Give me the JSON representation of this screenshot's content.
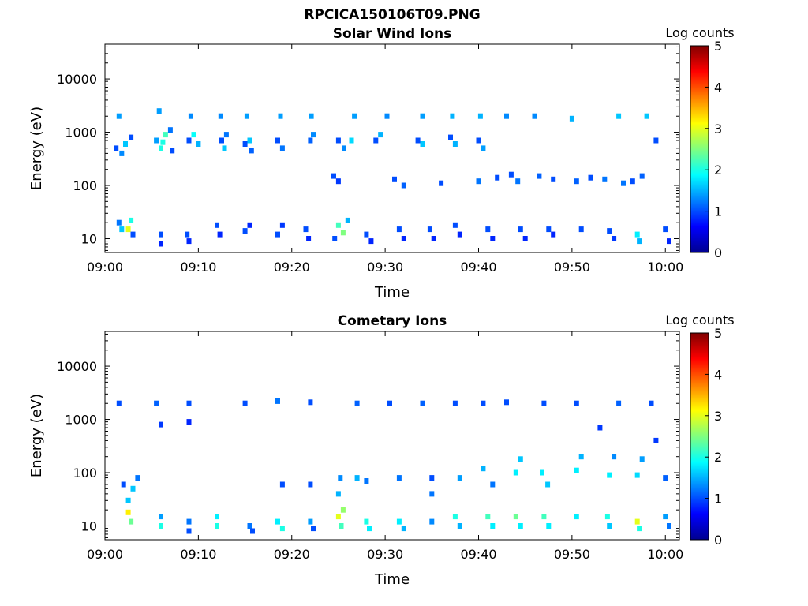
{
  "figure": {
    "title": "RPCICA150106T09.PNG"
  },
  "colorbar": {
    "label": "Log counts",
    "ticks": [
      "0",
      "1",
      "2",
      "3",
      "4",
      "5"
    ],
    "min": 0,
    "max": 5
  },
  "chart_data": [
    {
      "type": "heatmap",
      "title": "Solar Wind Ions",
      "xlabel": "Time",
      "ylabel": "Energy (eV)",
      "x_ticks": [
        "09:00",
        "09:10",
        "09:20",
        "09:30",
        "09:40",
        "09:50",
        "10:00"
      ],
      "x_range_minutes": [
        0,
        61.5
      ],
      "y_scale": "log",
      "y_ticks": [
        10,
        100,
        1000,
        10000
      ],
      "y_tick_labels": [
        "10",
        "100",
        "1000",
        "10000"
      ],
      "y_range": [
        5.5,
        45000
      ],
      "color_scale": "jet (Log counts 0-5)",
      "cells": [
        {
          "t": 1.5,
          "e": 20,
          "v": 1.2
        },
        {
          "t": 1.8,
          "e": 15,
          "v": 1.6
        },
        {
          "t": 2.5,
          "e": 15,
          "v": 3.0
        },
        {
          "t": 3,
          "e": 12,
          "v": 1.0
        },
        {
          "t": 2.8,
          "e": 22,
          "v": 2.0
        },
        {
          "t": 6,
          "e": 12,
          "v": 1.0
        },
        {
          "t": 6,
          "e": 8,
          "v": 0.8
        },
        {
          "t": 8.8,
          "e": 12,
          "v": 1.0
        },
        {
          "t": 9,
          "e": 9,
          "v": 0.8
        },
        {
          "t": 12,
          "e": 18,
          "v": 1.0
        },
        {
          "t": 12.3,
          "e": 12,
          "v": 0.8
        },
        {
          "t": 15,
          "e": 14,
          "v": 1.0
        },
        {
          "t": 15.5,
          "e": 18,
          "v": 0.8
        },
        {
          "t": 18.5,
          "e": 12,
          "v": 1.0
        },
        {
          "t": 19,
          "e": 18,
          "v": 0.9
        },
        {
          "t": 21.5,
          "e": 15,
          "v": 1.0
        },
        {
          "t": 21.8,
          "e": 10,
          "v": 0.8
        },
        {
          "t": 25,
          "e": 18,
          "v": 2.2
        },
        {
          "t": 25.5,
          "e": 13,
          "v": 2.5
        },
        {
          "t": 26,
          "e": 22,
          "v": 1.5
        },
        {
          "t": 24.6,
          "e": 10,
          "v": 1.0
        },
        {
          "t": 28,
          "e": 12,
          "v": 1.0
        },
        {
          "t": 28.5,
          "e": 9,
          "v": 0.8
        },
        {
          "t": 31.5,
          "e": 15,
          "v": 1.0
        },
        {
          "t": 32,
          "e": 10,
          "v": 0.8
        },
        {
          "t": 34.8,
          "e": 15,
          "v": 1.0
        },
        {
          "t": 35.2,
          "e": 10,
          "v": 0.8
        },
        {
          "t": 37.5,
          "e": 18,
          "v": 1.0
        },
        {
          "t": 38,
          "e": 12,
          "v": 0.8
        },
        {
          "t": 41,
          "e": 15,
          "v": 1.0
        },
        {
          "t": 41.5,
          "e": 10,
          "v": 0.8
        },
        {
          "t": 44.5,
          "e": 15,
          "v": 1.0
        },
        {
          "t": 45,
          "e": 10,
          "v": 0.8
        },
        {
          "t": 47.5,
          "e": 15,
          "v": 1.0
        },
        {
          "t": 48,
          "e": 12,
          "v": 0.8
        },
        {
          "t": 51,
          "e": 15,
          "v": 1.0
        },
        {
          "t": 54,
          "e": 14,
          "v": 1.0
        },
        {
          "t": 54.5,
          "e": 10,
          "v": 0.9
        },
        {
          "t": 57,
          "e": 12,
          "v": 1.8
        },
        {
          "t": 57.2,
          "e": 9,
          "v": 1.5
        },
        {
          "t": 60,
          "e": 15,
          "v": 1.0
        },
        {
          "t": 60.4,
          "e": 9,
          "v": 0.8
        },
        {
          "t": 1.2,
          "e": 500,
          "v": 1.0
        },
        {
          "t": 1.8,
          "e": 400,
          "v": 1.3
        },
        {
          "t": 2.2,
          "e": 600,
          "v": 1.6
        },
        {
          "t": 2.8,
          "e": 800,
          "v": 1.0
        },
        {
          "t": 1.5,
          "e": 2000,
          "v": 1.4
        },
        {
          "t": 5.5,
          "e": 700,
          "v": 1.4
        },
        {
          "t": 6,
          "e": 500,
          "v": 2.0
        },
        {
          "t": 6.5,
          "e": 900,
          "v": 2.2
        },
        {
          "t": 6.2,
          "e": 650,
          "v": 2.0
        },
        {
          "t": 7,
          "e": 1100,
          "v": 1.2
        },
        {
          "t": 5.8,
          "e": 2500,
          "v": 1.4
        },
        {
          "t": 7.2,
          "e": 450,
          "v": 1.0
        },
        {
          "t": 9,
          "e": 700,
          "v": 1.0
        },
        {
          "t": 9.5,
          "e": 900,
          "v": 1.9
        },
        {
          "t": 10,
          "e": 600,
          "v": 1.5
        },
        {
          "t": 9.2,
          "e": 2000,
          "v": 1.3
        },
        {
          "t": 12.5,
          "e": 700,
          "v": 1.0
        },
        {
          "t": 12.8,
          "e": 500,
          "v": 1.6
        },
        {
          "t": 13,
          "e": 900,
          "v": 1.2
        },
        {
          "t": 12.4,
          "e": 2000,
          "v": 1.3
        },
        {
          "t": 15,
          "e": 600,
          "v": 1.0
        },
        {
          "t": 15.5,
          "e": 700,
          "v": 1.6
        },
        {
          "t": 15.7,
          "e": 450,
          "v": 1.1
        },
        {
          "t": 15.2,
          "e": 2000,
          "v": 1.4
        },
        {
          "t": 18.5,
          "e": 700,
          "v": 1.0
        },
        {
          "t": 19,
          "e": 500,
          "v": 1.2
        },
        {
          "t": 18.8,
          "e": 2000,
          "v": 1.4
        },
        {
          "t": 22,
          "e": 700,
          "v": 1.1
        },
        {
          "t": 22.3,
          "e": 900,
          "v": 1.3
        },
        {
          "t": 22.1,
          "e": 2000,
          "v": 1.4
        },
        {
          "t": 25,
          "e": 700,
          "v": 1.0
        },
        {
          "t": 25.6,
          "e": 500,
          "v": 1.3
        },
        {
          "t": 26.7,
          "e": 2000,
          "v": 1.4
        },
        {
          "t": 26.4,
          "e": 700,
          "v": 1.7
        },
        {
          "t": 29,
          "e": 700,
          "v": 1.0
        },
        {
          "t": 29.5,
          "e": 900,
          "v": 1.5
        },
        {
          "t": 30.2,
          "e": 2000,
          "v": 1.3
        },
        {
          "t": 33.5,
          "e": 700,
          "v": 1.0
        },
        {
          "t": 34,
          "e": 600,
          "v": 1.6
        },
        {
          "t": 34,
          "e": 2000,
          "v": 1.4
        },
        {
          "t": 37,
          "e": 800,
          "v": 1.0
        },
        {
          "t": 37.5,
          "e": 600,
          "v": 1.5
        },
        {
          "t": 37.2,
          "e": 2000,
          "v": 1.5
        },
        {
          "t": 40,
          "e": 700,
          "v": 1.0
        },
        {
          "t": 40.5,
          "e": 500,
          "v": 1.4
        },
        {
          "t": 40.2,
          "e": 2000,
          "v": 1.5
        },
        {
          "t": 43,
          "e": 2000,
          "v": 1.3
        },
        {
          "t": 46,
          "e": 2000,
          "v": 1.3
        },
        {
          "t": 50,
          "e": 1800,
          "v": 1.5
        },
        {
          "t": 55,
          "e": 2000,
          "v": 1.6
        },
        {
          "t": 58,
          "e": 2000,
          "v": 1.6
        },
        {
          "t": 59,
          "e": 700,
          "v": 1.0
        },
        {
          "t": 24.5,
          "e": 150,
          "v": 1.0
        },
        {
          "t": 25,
          "e": 120,
          "v": 0.9
        },
        {
          "t": 31,
          "e": 130,
          "v": 1.0
        },
        {
          "t": 32,
          "e": 100,
          "v": 1.1
        },
        {
          "t": 36,
          "e": 110,
          "v": 1.0
        },
        {
          "t": 40,
          "e": 120,
          "v": 1.2
        },
        {
          "t": 42,
          "e": 140,
          "v": 1.0
        },
        {
          "t": 43.5,
          "e": 160,
          "v": 1.0
        },
        {
          "t": 44.2,
          "e": 120,
          "v": 1.2
        },
        {
          "t": 46.5,
          "e": 150,
          "v": 1.1
        },
        {
          "t": 48,
          "e": 130,
          "v": 1.0
        },
        {
          "t": 50.5,
          "e": 120,
          "v": 1.1
        },
        {
          "t": 52,
          "e": 140,
          "v": 1.0
        },
        {
          "t": 53.5,
          "e": 130,
          "v": 1.2
        },
        {
          "t": 55.5,
          "e": 110,
          "v": 1.2
        },
        {
          "t": 56.5,
          "e": 120,
          "v": 1.0
        },
        {
          "t": 57.5,
          "e": 150,
          "v": 1.1
        }
      ]
    },
    {
      "type": "heatmap",
      "title": "Cometary Ions",
      "xlabel": "Time",
      "ylabel": "Energy (eV)",
      "x_ticks": [
        "09:00",
        "09:10",
        "09:20",
        "09:30",
        "09:40",
        "09:50",
        "10:00"
      ],
      "x_range_minutes": [
        0,
        61.5
      ],
      "y_scale": "log",
      "y_ticks": [
        10,
        100,
        1000,
        10000
      ],
      "y_tick_labels": [
        "10",
        "100",
        "1000",
        "10000"
      ],
      "y_range": [
        5.5,
        45000
      ],
      "color_scale": "jet (Log counts 0-5)",
      "cells": [
        {
          "t": 2.5,
          "e": 18,
          "v": 3.2
        },
        {
          "t": 2.8,
          "e": 12,
          "v": 2.4
        },
        {
          "t": 2.5,
          "e": 30,
          "v": 1.6
        },
        {
          "t": 2,
          "e": 60,
          "v": 1.0
        },
        {
          "t": 3,
          "e": 50,
          "v": 1.6
        },
        {
          "t": 3.5,
          "e": 80,
          "v": 1.2
        },
        {
          "t": 6,
          "e": 10,
          "v": 2.0
        },
        {
          "t": 6,
          "e": 15,
          "v": 1.4
        },
        {
          "t": 9,
          "e": 12,
          "v": 1.2
        },
        {
          "t": 9,
          "e": 8,
          "v": 1.0
        },
        {
          "t": 12,
          "e": 10,
          "v": 2.0
        },
        {
          "t": 12,
          "e": 15,
          "v": 1.8
        },
        {
          "t": 15.5,
          "e": 10,
          "v": 1.2
        },
        {
          "t": 15.8,
          "e": 8,
          "v": 1.0
        },
        {
          "t": 18.5,
          "e": 12,
          "v": 1.8
        },
        {
          "t": 19,
          "e": 9,
          "v": 2.0
        },
        {
          "t": 19,
          "e": 60,
          "v": 1.0
        },
        {
          "t": 22,
          "e": 12,
          "v": 1.4
        },
        {
          "t": 22.3,
          "e": 9,
          "v": 1.0
        },
        {
          "t": 22,
          "e": 60,
          "v": 1.0
        },
        {
          "t": 25,
          "e": 15,
          "v": 3.0
        },
        {
          "t": 25.5,
          "e": 20,
          "v": 2.6
        },
        {
          "t": 25.3,
          "e": 10,
          "v": 2.2
        },
        {
          "t": 25,
          "e": 40,
          "v": 1.5
        },
        {
          "t": 25.2,
          "e": 80,
          "v": 1.3
        },
        {
          "t": 28,
          "e": 12,
          "v": 2.0
        },
        {
          "t": 28.3,
          "e": 9,
          "v": 1.8
        },
        {
          "t": 27,
          "e": 80,
          "v": 1.5
        },
        {
          "t": 28,
          "e": 70,
          "v": 1.2
        },
        {
          "t": 31.5,
          "e": 12,
          "v": 1.8
        },
        {
          "t": 32,
          "e": 9,
          "v": 1.5
        },
        {
          "t": 31.5,
          "e": 80,
          "v": 1.2
        },
        {
          "t": 35,
          "e": 12,
          "v": 1.3
        },
        {
          "t": 35,
          "e": 40,
          "v": 1.2
        },
        {
          "t": 35,
          "e": 80,
          "v": 1.0
        },
        {
          "t": 37.5,
          "e": 15,
          "v": 2.0
        },
        {
          "t": 38,
          "e": 10,
          "v": 1.5
        },
        {
          "t": 38,
          "e": 80,
          "v": 1.4
        },
        {
          "t": 41,
          "e": 15,
          "v": 2.2
        },
        {
          "t": 41.5,
          "e": 10,
          "v": 1.8
        },
        {
          "t": 40.5,
          "e": 120,
          "v": 1.5
        },
        {
          "t": 41.5,
          "e": 60,
          "v": 1.2
        },
        {
          "t": 44,
          "e": 15,
          "v": 2.4
        },
        {
          "t": 44.5,
          "e": 10,
          "v": 1.8
        },
        {
          "t": 44,
          "e": 100,
          "v": 1.8
        },
        {
          "t": 44.5,
          "e": 180,
          "v": 1.6
        },
        {
          "t": 47,
          "e": 15,
          "v": 2.2
        },
        {
          "t": 47.5,
          "e": 10,
          "v": 1.8
        },
        {
          "t": 46.8,
          "e": 100,
          "v": 1.8
        },
        {
          "t": 47.4,
          "e": 60,
          "v": 1.6
        },
        {
          "t": 50.5,
          "e": 15,
          "v": 1.8
        },
        {
          "t": 50.5,
          "e": 110,
          "v": 1.8
        },
        {
          "t": 51,
          "e": 200,
          "v": 1.5
        },
        {
          "t": 53.8,
          "e": 15,
          "v": 2.0
        },
        {
          "t": 54,
          "e": 10,
          "v": 1.6
        },
        {
          "t": 54,
          "e": 90,
          "v": 1.8
        },
        {
          "t": 54.5,
          "e": 200,
          "v": 1.3
        },
        {
          "t": 57,
          "e": 12,
          "v": 3.0
        },
        {
          "t": 57.2,
          "e": 9,
          "v": 2.0
        },
        {
          "t": 57,
          "e": 90,
          "v": 1.7
        },
        {
          "t": 57.5,
          "e": 180,
          "v": 1.4
        },
        {
          "t": 60,
          "e": 15,
          "v": 1.4
        },
        {
          "t": 60.4,
          "e": 10,
          "v": 1.2
        },
        {
          "t": 60,
          "e": 80,
          "v": 1.1
        },
        {
          "t": 1.5,
          "e": 2000,
          "v": 1.0
        },
        {
          "t": 5.5,
          "e": 2000,
          "v": 1.1
        },
        {
          "t": 9,
          "e": 2000,
          "v": 1.0
        },
        {
          "t": 15,
          "e": 2000,
          "v": 1.0
        },
        {
          "t": 18.5,
          "e": 2200,
          "v": 1.2
        },
        {
          "t": 22,
          "e": 2100,
          "v": 1.0
        },
        {
          "t": 27,
          "e": 2000,
          "v": 1.1
        },
        {
          "t": 30.5,
          "e": 2000,
          "v": 1.0
        },
        {
          "t": 34,
          "e": 2000,
          "v": 1.1
        },
        {
          "t": 37.5,
          "e": 2000,
          "v": 1.0
        },
        {
          "t": 40.5,
          "e": 2000,
          "v": 1.0
        },
        {
          "t": 43,
          "e": 2100,
          "v": 1.0
        },
        {
          "t": 47,
          "e": 2000,
          "v": 1.0
        },
        {
          "t": 50.5,
          "e": 2000,
          "v": 1.0
        },
        {
          "t": 55,
          "e": 2000,
          "v": 1.1
        },
        {
          "t": 58.5,
          "e": 2000,
          "v": 1.0
        },
        {
          "t": 6,
          "e": 800,
          "v": 0.9
        },
        {
          "t": 9,
          "e": 900,
          "v": 0.8
        },
        {
          "t": 53,
          "e": 700,
          "v": 0.9
        },
        {
          "t": 59,
          "e": 400,
          "v": 0.9
        }
      ]
    }
  ]
}
